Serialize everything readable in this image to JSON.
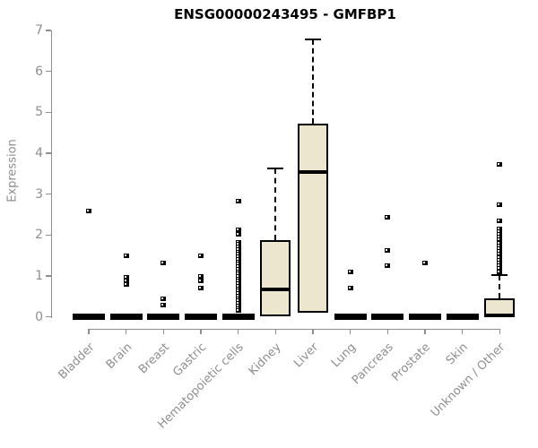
{
  "chart_data": {
    "type": "boxplot",
    "title": "ENSG00000243495 - GMFBP1",
    "ylabel": "Expression",
    "xlabel": "",
    "ylim": [
      0,
      7
    ],
    "yticks": [
      0,
      1,
      2,
      3,
      4,
      5,
      6,
      7
    ],
    "grid": false,
    "legend": "none",
    "colors": {
      "box_fill": "#EDE6CE",
      "box_border": "#000000",
      "median": "#000000",
      "whisker": "#000000",
      "axis": "#8e8e8e",
      "tick_label": "#8e8e8e",
      "title": "#000000"
    },
    "categories": [
      "Bladder",
      "Brain",
      "Breast",
      "Gastric",
      "Hematopoietic cells",
      "Kidney",
      "Liver",
      "Lung",
      "Pancreas",
      "Prostate",
      "Skin",
      "Unknown / Other"
    ],
    "series": [
      {
        "category": "Bladder",
        "q1": 0,
        "median": 0,
        "q3": 0.05,
        "whisker_low": 0,
        "whisker_high": 0.05,
        "outliers": [
          2.58
        ]
      },
      {
        "category": "Brain",
        "q1": 0,
        "median": 0,
        "q3": 0.05,
        "whisker_low": 0,
        "whisker_high": 0.05,
        "outliers": [
          1.5,
          0.97,
          0.88,
          0.79
        ]
      },
      {
        "category": "Breast",
        "q1": 0,
        "median": 0,
        "q3": 0.05,
        "whisker_low": 0,
        "whisker_high": 0.05,
        "outliers": [
          1.32,
          0.45,
          0.28
        ]
      },
      {
        "category": "Gastric",
        "q1": 0,
        "median": 0,
        "q3": 0.05,
        "whisker_low": 0,
        "whisker_high": 0.05,
        "outliers": [
          1.5,
          0.99,
          0.87,
          0.7
        ]
      },
      {
        "category": "Hematopoietic cells",
        "q1": 0,
        "median": 0,
        "q3": 0.05,
        "whisker_low": 0,
        "whisker_high": 0.05,
        "outliers": [
          2.82,
          2.12,
          2.01,
          1.83,
          1.77,
          1.71,
          1.65,
          1.59,
          1.53,
          1.47,
          1.41,
          1.35,
          1.29,
          1.23,
          1.17,
          1.11,
          1.05,
          0.99,
          0.93,
          0.87,
          0.81,
          0.75,
          0.69,
          0.63,
          0.57,
          0.51,
          0.45,
          0.39,
          0.33,
          0.27,
          0.21,
          0.15
        ]
      },
      {
        "category": "Kidney",
        "q1": 0.02,
        "median": 0.68,
        "q3": 1.88,
        "whisker_low": 0.02,
        "whisker_high": 3.62,
        "outliers": []
      },
      {
        "category": "Liver",
        "q1": 0.1,
        "median": 3.55,
        "q3": 4.72,
        "whisker_low": 0.1,
        "whisker_high": 6.78,
        "outliers": []
      },
      {
        "category": "Lung",
        "q1": 0,
        "median": 0,
        "q3": 0.05,
        "whisker_low": 0,
        "whisker_high": 0.05,
        "outliers": [
          1.1,
          0.7
        ]
      },
      {
        "category": "Pancreas",
        "q1": 0,
        "median": 0,
        "q3": 0.05,
        "whisker_low": 0,
        "whisker_high": 0.05,
        "outliers": [
          2.44,
          1.63,
          1.25
        ]
      },
      {
        "category": "Prostate",
        "q1": 0,
        "median": 0,
        "q3": 0.05,
        "whisker_low": 0,
        "whisker_high": 0.05,
        "outliers": [
          1.32
        ]
      },
      {
        "category": "Skin",
        "q1": 0,
        "median": 0,
        "q3": 0.05,
        "whisker_low": 0,
        "whisker_high": 0.05,
        "outliers": []
      },
      {
        "category": "Unknown / Other",
        "q1": 0,
        "median": 0.03,
        "q3": 0.45,
        "whisker_low": 0,
        "whisker_high": 1.03,
        "outliers": [
          3.73,
          2.74,
          2.34,
          2.16,
          2.09,
          2.02,
          1.95,
          1.88,
          1.81,
          1.74,
          1.67,
          1.6,
          1.53,
          1.46,
          1.39,
          1.32,
          1.25,
          1.18,
          1.11
        ]
      }
    ]
  }
}
